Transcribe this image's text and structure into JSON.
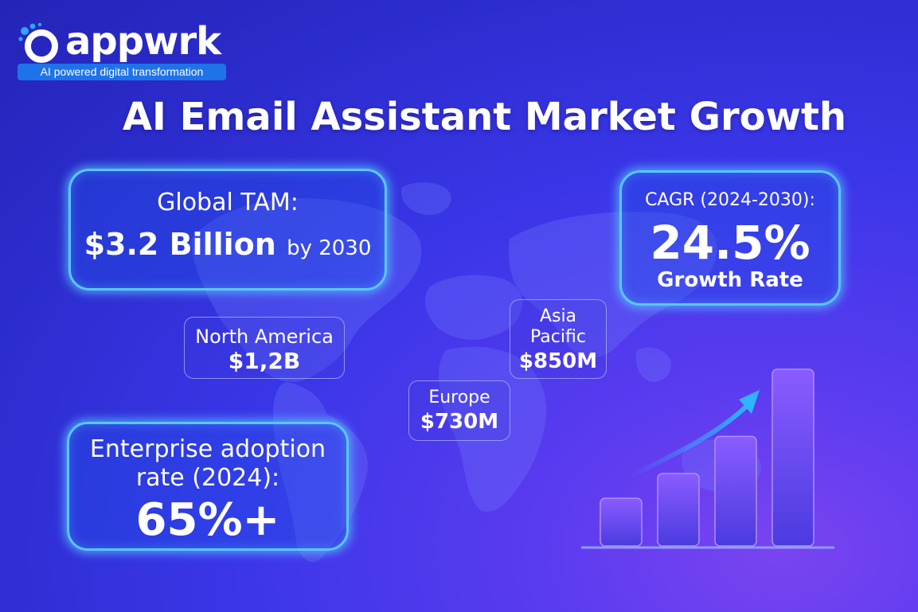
{
  "brand": {
    "name": "appwrk",
    "tagline": "AI powered digital transformation",
    "color_primary": "#1e73e8",
    "icon": "appwrk-logo-icon"
  },
  "title": "AI Email Assistant Market Growth",
  "tam": {
    "label": "Global TAM:",
    "value": "$3.2 Billion",
    "suffix": "by 2030"
  },
  "cagr": {
    "label": "CAGR (2024-2030):",
    "value": "24.5%",
    "caption": "Growth Rate"
  },
  "adoption": {
    "label_line1": "Enterprise adoption",
    "label_line2": "rate (2024):",
    "value": "65%+"
  },
  "regions": {
    "north_america": {
      "name": "North America",
      "value": "$1,2B"
    },
    "asia_pacific": {
      "name_line1": "Asia",
      "name_line2": "Pacific",
      "value": "$850M"
    },
    "europe": {
      "name": "Europe",
      "value": "$730M"
    }
  },
  "growth_graphic": {
    "bar_count": 4,
    "bar_levels": [
      0.27,
      0.41,
      0.62,
      1.0
    ],
    "bar_color": "#7a4ff5",
    "arrow_icon": "trend-up-arrow-icon",
    "arrow_color": "#2fb4ff"
  },
  "colors": {
    "background": "#3a36e8",
    "glow_border": "#58c8ff",
    "region_border": "#b4b9ff"
  }
}
